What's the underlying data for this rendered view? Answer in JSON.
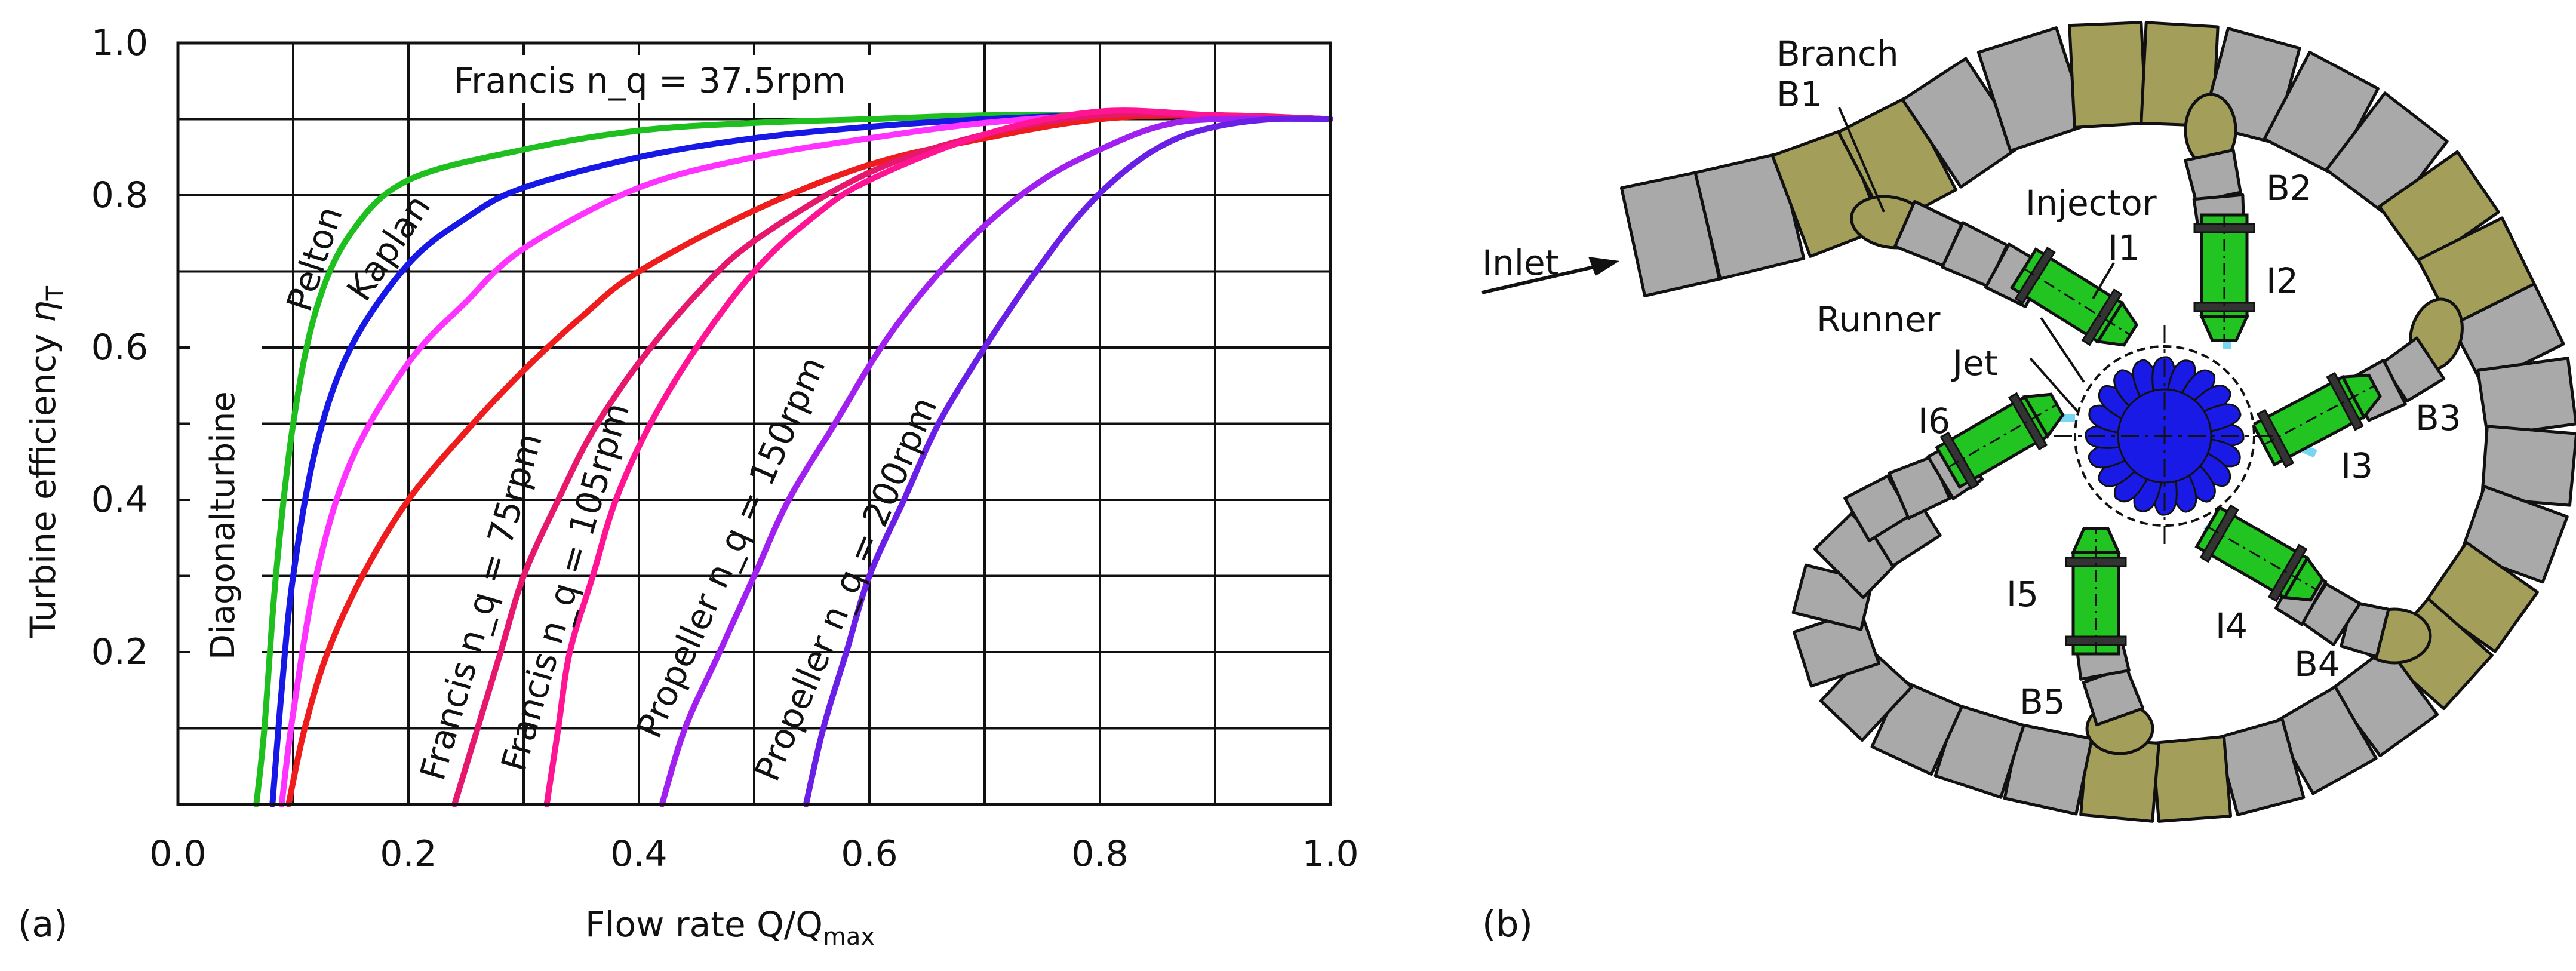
{
  "panels": {
    "a": "(a)",
    "b": "(b)"
  },
  "chart_data": {
    "type": "line",
    "title": "",
    "xlabel": "Flow rate Q/Q_max",
    "xlabel_main": "Flow rate Q/Q",
    "xlabel_sub": "max",
    "ylabel": "Turbine efficiency η_T",
    "ylabel_main": "Turbine efficiency ",
    "ylabel_eta": "η",
    "ylabel_sub": "T",
    "xlim": [
      0,
      1
    ],
    "ylim": [
      0,
      1
    ],
    "grid": true,
    "x_ticks": [
      "0.0",
      "0.2",
      "0.4",
      "0.6",
      "0.8",
      "1.0"
    ],
    "y_ticks": [
      "0.2",
      "0.4",
      "0.6",
      "0.8",
      "1.0"
    ],
    "series": [
      {
        "name": "Pelton",
        "color": "#1fbf1f",
        "x": [
          0.068,
          0.075,
          0.085,
          0.1,
          0.12,
          0.15,
          0.2,
          0.3,
          0.4,
          0.5,
          0.6,
          0.7,
          0.8,
          0.9,
          1.0
        ],
        "y": [
          0.0,
          0.1,
          0.3,
          0.5,
          0.65,
          0.75,
          0.82,
          0.86,
          0.885,
          0.895,
          0.9,
          0.905,
          0.905,
          0.905,
          0.9
        ]
      },
      {
        "name": "Kaplan",
        "color": "#1717e6",
        "x": [
          0.082,
          0.09,
          0.1,
          0.12,
          0.15,
          0.2,
          0.25,
          0.3,
          0.4,
          0.5,
          0.6,
          0.7,
          0.8,
          0.9,
          1.0
        ],
        "y": [
          0.0,
          0.15,
          0.3,
          0.47,
          0.6,
          0.71,
          0.77,
          0.81,
          0.85,
          0.875,
          0.89,
          0.9,
          0.905,
          0.905,
          0.9
        ]
      },
      {
        "name": "Diagonalturbine",
        "color": "#ff33ff",
        "x": [
          0.09,
          0.1,
          0.12,
          0.15,
          0.2,
          0.25,
          0.3,
          0.4,
          0.5,
          0.6,
          0.7,
          0.8,
          0.9,
          1.0
        ],
        "y": [
          0.0,
          0.12,
          0.3,
          0.45,
          0.58,
          0.66,
          0.73,
          0.81,
          0.85,
          0.875,
          0.895,
          0.905,
          0.905,
          0.9
        ]
      },
      {
        "name": "Francis n_q = 75rpm",
        "color": "#ee1c1c",
        "x": [
          0.096,
          0.11,
          0.13,
          0.16,
          0.2,
          0.25,
          0.3,
          0.35,
          0.4,
          0.5,
          0.6,
          0.7,
          0.8,
          0.9,
          1.0
        ],
        "y": [
          0.0,
          0.1,
          0.2,
          0.3,
          0.4,
          0.49,
          0.57,
          0.64,
          0.7,
          0.78,
          0.84,
          0.875,
          0.9,
          0.905,
          0.9
        ]
      },
      {
        "name": "Francis n_q = 105rpm",
        "color": "#e6186e",
        "x": [
          0.24,
          0.26,
          0.28,
          0.3,
          0.33,
          0.36,
          0.4,
          0.45,
          0.5,
          0.6,
          0.7,
          0.8,
          0.9,
          1.0
        ],
        "y": [
          0.0,
          0.1,
          0.2,
          0.3,
          0.4,
          0.49,
          0.58,
          0.67,
          0.74,
          0.83,
          0.88,
          0.905,
          0.905,
          0.9
        ]
      },
      {
        "name": "Propeller n_q = 150rpm",
        "color": "#ff1493",
        "x": [
          0.32,
          0.33,
          0.34,
          0.36,
          0.38,
          0.41,
          0.45,
          0.5,
          0.55,
          0.6,
          0.7,
          0.8,
          0.9,
          1.0
        ],
        "y": [
          0.0,
          0.1,
          0.2,
          0.3,
          0.4,
          0.5,
          0.6,
          0.7,
          0.77,
          0.82,
          0.88,
          0.91,
          0.905,
          0.9
        ]
      },
      {
        "name": "Propeller n_q = 200rpm",
        "color": "#a020f0",
        "x": [
          0.42,
          0.44,
          0.47,
          0.5,
          0.53,
          0.57,
          0.61,
          0.65,
          0.7,
          0.75,
          0.8,
          0.85,
          0.9,
          1.0
        ],
        "y": [
          0.0,
          0.1,
          0.2,
          0.3,
          0.4,
          0.5,
          0.6,
          0.68,
          0.76,
          0.82,
          0.86,
          0.89,
          0.9,
          0.9
        ]
      },
      {
        "name": "",
        "color": "#6a1fe6",
        "x": [
          0.545,
          0.56,
          0.58,
          0.6,
          0.63,
          0.66,
          0.7,
          0.74,
          0.78,
          0.82,
          0.86,
          0.9,
          0.95,
          1.0
        ],
        "y": [
          0.0,
          0.1,
          0.2,
          0.3,
          0.4,
          0.5,
          0.6,
          0.69,
          0.77,
          0.83,
          0.87,
          0.89,
          0.9,
          0.9
        ]
      }
    ],
    "annotations": [
      "Francis n_q = 37.5rpm"
    ]
  },
  "diagram": {
    "labels": {
      "inlet": "Inlet",
      "branch": "Branch",
      "b1": "B1",
      "b2": "B2",
      "b3": "B3",
      "b4": "B4",
      "b5": "B5",
      "injector": "Injector",
      "i1": "I1",
      "i2": "I2",
      "i3": "I3",
      "i4": "I4",
      "i5": "I5",
      "i6": "I6",
      "runner": "Runner",
      "jet": "Jet"
    },
    "colors": {
      "pipe": "#a9a9a9",
      "branch_section": "#a39f5a",
      "injector": "#22c422",
      "runner": "#1a1ae6",
      "jet": "#5fd0f0"
    }
  }
}
